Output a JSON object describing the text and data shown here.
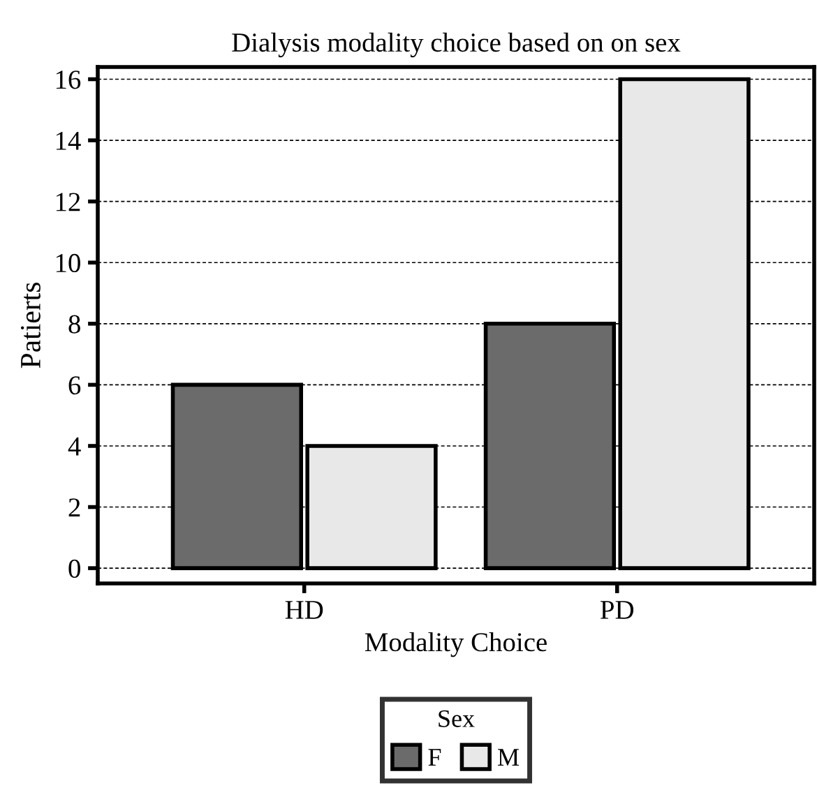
{
  "chart_data": {
    "type": "bar",
    "title": "Dialysis modality choice based on on sex",
    "xlabel": "Modality Choice",
    "ylabel": "Patierts",
    "legend_title": "Sex",
    "categories": [
      "HD",
      "PD"
    ],
    "series": [
      {
        "name": "F",
        "color": "#6b6b6b",
        "values": [
          6,
          8
        ]
      },
      {
        "name": "M",
        "color": "#e8e8e8",
        "values": [
          4,
          16
        ]
      }
    ],
    "ylim": [
      -0.5,
      16.4
    ],
    "yticks": [
      0,
      2,
      4,
      6,
      8,
      10,
      12,
      14,
      16
    ],
    "grid": "y",
    "legend": "bottom"
  }
}
